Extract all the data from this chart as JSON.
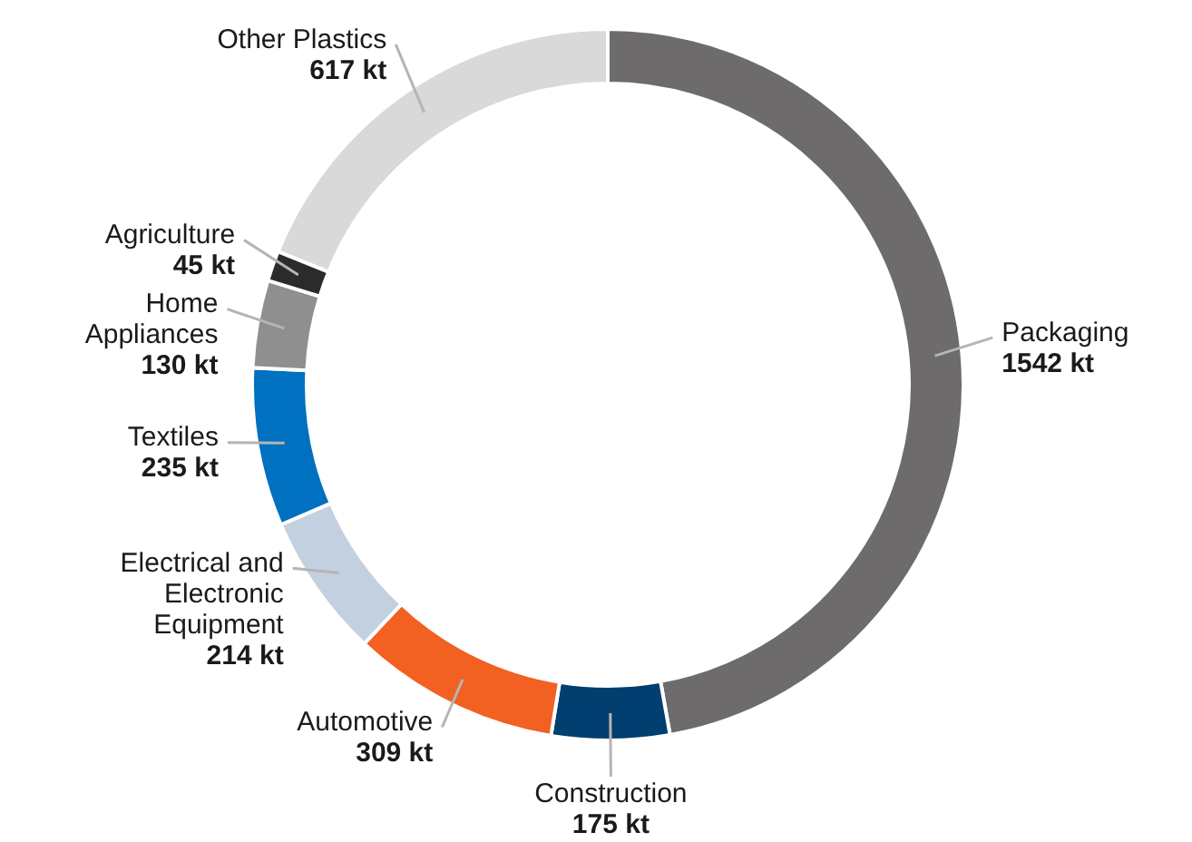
{
  "chart_data": {
    "type": "donut",
    "categories": [
      "Packaging",
      "Construction",
      "Automotive",
      "Electrical and Electronic Equipment",
      "Textiles",
      "Home Appliances",
      "Agriculture",
      "Other Plastics"
    ],
    "values": [
      1542,
      175,
      309,
      214,
      235,
      130,
      45,
      617
    ],
    "colors": [
      "#6d6b6b",
      "#003f6f",
      "#f26022",
      "#c3d0e0",
      "#0070c0",
      "#8f8f8f",
      "#2b2b2b",
      "#d9d9d9"
    ],
    "value_labels": [
      "1542 kt",
      "175 kt",
      "309 kt",
      "214 kt",
      "235 kt",
      "130 kt",
      "45 kt",
      "617 kt"
    ]
  }
}
